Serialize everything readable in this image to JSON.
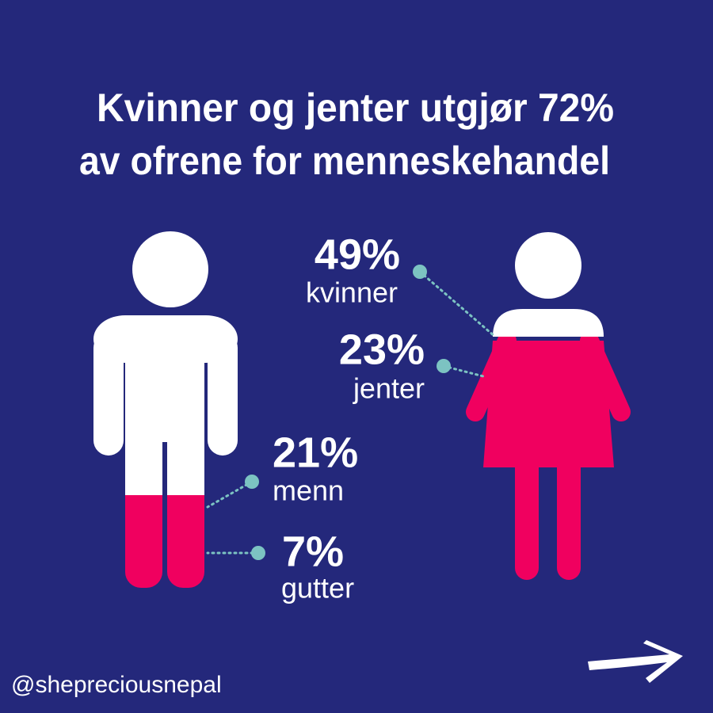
{
  "title": {
    "line1": "Kvinner og jenter utgjør 72%",
    "line2": "av ofrene for menneskehandel"
  },
  "stats": [
    {
      "value": "49%",
      "label": "kvinner"
    },
    {
      "value": "23%",
      "label": "jenter"
    },
    {
      "value": "21%",
      "label": "menn"
    },
    {
      "value": "7%",
      "label": "gutter"
    }
  ],
  "handle": "@shepreciousnepal"
}
